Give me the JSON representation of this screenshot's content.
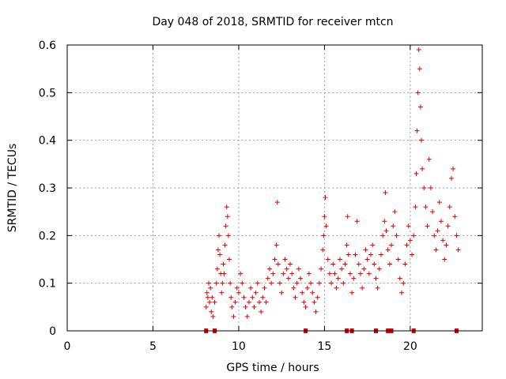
{
  "chart_data": {
    "type": "scatter",
    "title": "Day 048 of 2018, SRMTID for receiver mtcn",
    "xlabel": "GPS time / hours",
    "ylabel": "SRMTID / TECUs",
    "xlim": [
      0,
      24.2
    ],
    "ylim": [
      0,
      0.6
    ],
    "x_ticks": [
      0,
      5,
      10,
      15,
      20
    ],
    "x_tick_labels": [
      "0",
      "5",
      "10",
      "15",
      "20"
    ],
    "y_ticks": [
      0,
      0.1,
      0.2,
      0.3,
      0.4,
      0.5,
      0.6
    ],
    "y_tick_labels": [
      "0",
      "0.1",
      "0.2",
      "0.3",
      "0.4",
      "0.5",
      "0.6"
    ],
    "grid": true,
    "marker": "+",
    "color": "#e00000",
    "series": [
      {
        "name": "SRMTID",
        "points": [
          [
            8.1,
            0.05
          ],
          [
            8.15,
            0.08
          ],
          [
            8.2,
            0.07
          ],
          [
            8.25,
            0.1
          ],
          [
            8.3,
            0.06
          ],
          [
            8.35,
            0.09
          ],
          [
            8.4,
            0.04
          ],
          [
            8.45,
            0.07
          ],
          [
            8.5,
            0.03
          ],
          [
            8.6,
            0.06
          ],
          [
            8.7,
            0.1
          ],
          [
            8.75,
            0.13
          ],
          [
            8.8,
            0.17
          ],
          [
            8.85,
            0.2
          ],
          [
            8.9,
            0.16
          ],
          [
            8.95,
            0.12
          ],
          [
            9.0,
            0.08
          ],
          [
            9.05,
            0.1
          ],
          [
            9.1,
            0.14
          ],
          [
            9.15,
            0.12
          ],
          [
            9.2,
            0.18
          ],
          [
            9.25,
            0.22
          ],
          [
            9.3,
            0.26
          ],
          [
            9.35,
            0.24
          ],
          [
            9.4,
            0.2
          ],
          [
            9.45,
            0.15
          ],
          [
            9.5,
            0.1
          ],
          [
            9.55,
            0.07
          ],
          [
            9.6,
            0.05
          ],
          [
            9.7,
            0.03
          ],
          [
            9.8,
            0.06
          ],
          [
            9.9,
            0.09
          ],
          [
            10.0,
            0.08
          ],
          [
            10.1,
            0.12
          ],
          [
            10.2,
            0.1
          ],
          [
            10.3,
            0.07
          ],
          [
            10.4,
            0.05
          ],
          [
            10.5,
            0.03
          ],
          [
            10.6,
            0.06
          ],
          [
            10.7,
            0.09
          ],
          [
            10.8,
            0.07
          ],
          [
            10.9,
            0.05
          ],
          [
            11.0,
            0.08
          ],
          [
            11.1,
            0.1
          ],
          [
            11.2,
            0.06
          ],
          [
            11.3,
            0.04
          ],
          [
            11.4,
            0.07
          ],
          [
            11.5,
            0.09
          ],
          [
            11.6,
            0.06
          ],
          [
            11.7,
            0.11
          ],
          [
            11.8,
            0.13
          ],
          [
            11.9,
            0.1
          ],
          [
            12.0,
            0.12
          ],
          [
            12.1,
            0.15
          ],
          [
            12.2,
            0.18
          ],
          [
            12.25,
            0.27
          ],
          [
            12.3,
            0.14
          ],
          [
            12.4,
            0.1
          ],
          [
            12.5,
            0.08
          ],
          [
            12.6,
            0.12
          ],
          [
            12.7,
            0.15
          ],
          [
            12.8,
            0.13
          ],
          [
            12.9,
            0.11
          ],
          [
            13.0,
            0.14
          ],
          [
            13.1,
            0.12
          ],
          [
            13.2,
            0.09
          ],
          [
            13.3,
            0.07
          ],
          [
            13.4,
            0.1
          ],
          [
            13.5,
            0.13
          ],
          [
            13.6,
            0.11
          ],
          [
            13.7,
            0.08
          ],
          [
            13.8,
            0.06
          ],
          [
            13.9,
            0.05
          ],
          [
            14.0,
            0.09
          ],
          [
            14.1,
            0.12
          ],
          [
            14.2,
            0.1
          ],
          [
            14.3,
            0.08
          ],
          [
            14.4,
            0.06
          ],
          [
            14.5,
            0.04
          ],
          [
            14.6,
            0.07
          ],
          [
            14.7,
            0.1
          ],
          [
            14.8,
            0.13
          ],
          [
            14.9,
            0.17
          ],
          [
            14.95,
            0.2
          ],
          [
            15.0,
            0.24
          ],
          [
            15.05,
            0.28
          ],
          [
            15.1,
            0.22
          ],
          [
            15.2,
            0.15
          ],
          [
            15.3,
            0.12
          ],
          [
            15.4,
            0.1
          ],
          [
            15.5,
            0.14
          ],
          [
            15.6,
            0.12
          ],
          [
            15.7,
            0.09
          ],
          [
            15.8,
            0.11
          ],
          [
            15.9,
            0.15
          ],
          [
            16.0,
            0.13
          ],
          [
            16.1,
            0.1
          ],
          [
            16.2,
            0.14
          ],
          [
            16.3,
            0.18
          ],
          [
            16.35,
            0.24
          ],
          [
            16.4,
            0.16
          ],
          [
            16.5,
            0.12
          ],
          [
            16.6,
            0.08
          ],
          [
            16.7,
            0.11
          ],
          [
            16.8,
            0.16
          ],
          [
            16.9,
            0.23
          ],
          [
            17.0,
            0.14
          ],
          [
            17.1,
            0.12
          ],
          [
            17.2,
            0.09
          ],
          [
            17.3,
            0.13
          ],
          [
            17.4,
            0.17
          ],
          [
            17.5,
            0.15
          ],
          [
            17.6,
            0.12
          ],
          [
            17.7,
            0.16
          ],
          [
            17.8,
            0.18
          ],
          [
            17.9,
            0.14
          ],
          [
            18.0,
            0.11
          ],
          [
            18.1,
            0.09
          ],
          [
            18.2,
            0.13
          ],
          [
            18.3,
            0.16
          ],
          [
            18.4,
            0.2
          ],
          [
            18.5,
            0.23
          ],
          [
            18.55,
            0.29
          ],
          [
            18.6,
            0.21
          ],
          [
            18.7,
            0.17
          ],
          [
            18.8,
            0.14
          ],
          [
            18.9,
            0.18
          ],
          [
            19.0,
            0.22
          ],
          [
            19.1,
            0.25
          ],
          [
            19.2,
            0.2
          ],
          [
            19.3,
            0.15
          ],
          [
            19.4,
            0.11
          ],
          [
            19.5,
            0.08
          ],
          [
            19.6,
            0.1
          ],
          [
            19.7,
            0.14
          ],
          [
            19.8,
            0.18
          ],
          [
            19.9,
            0.22
          ],
          [
            20.0,
            0.19
          ],
          [
            20.1,
            0.16
          ],
          [
            20.2,
            0.2
          ],
          [
            20.3,
            0.26
          ],
          [
            20.35,
            0.33
          ],
          [
            20.4,
            0.42
          ],
          [
            20.45,
            0.5
          ],
          [
            20.5,
            0.59
          ],
          [
            20.55,
            0.55
          ],
          [
            20.6,
            0.47
          ],
          [
            20.65,
            0.4
          ],
          [
            20.7,
            0.34
          ],
          [
            20.8,
            0.3
          ],
          [
            20.9,
            0.26
          ],
          [
            21.0,
            0.22
          ],
          [
            21.1,
            0.36
          ],
          [
            21.2,
            0.3
          ],
          [
            21.3,
            0.25
          ],
          [
            21.4,
            0.2
          ],
          [
            21.5,
            0.17
          ],
          [
            21.6,
            0.21
          ],
          [
            21.7,
            0.27
          ],
          [
            21.8,
            0.23
          ],
          [
            21.9,
            0.19
          ],
          [
            22.0,
            0.15
          ],
          [
            22.1,
            0.18
          ],
          [
            22.2,
            0.22
          ],
          [
            22.3,
            0.26
          ],
          [
            22.4,
            0.32
          ],
          [
            22.5,
            0.34
          ],
          [
            22.6,
            0.24
          ],
          [
            22.7,
            0.2
          ],
          [
            22.8,
            0.17
          ]
        ]
      }
    ],
    "baseline_markers_x": [
      8.1,
      8.6,
      13.9,
      16.3,
      16.6,
      18.0,
      18.7,
      18.9,
      20.2,
      22.7
    ]
  }
}
